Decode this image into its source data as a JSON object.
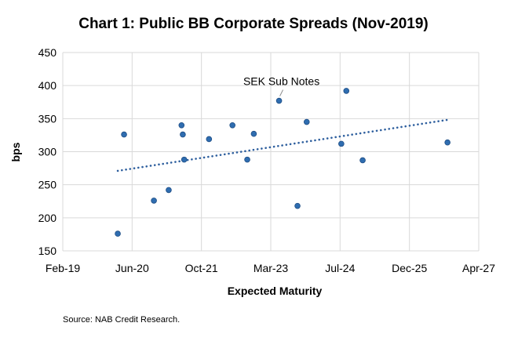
{
  "chart_data": {
    "type": "scatter",
    "title": "Chart 1: Public BB Corporate Spreads (Nov-2019)",
    "xlabel": "Expected Maturity",
    "ylabel": "bps",
    "x_ticks": [
      "Feb-19",
      "Jun-20",
      "Oct-21",
      "Mar-23",
      "Jul-24",
      "Dec-25",
      "Apr-27"
    ],
    "y_ticks": [
      150,
      200,
      250,
      300,
      350,
      400,
      450
    ],
    "ylim": [
      150,
      450
    ],
    "xlim": [
      "2019-02-01",
      "2027-04-01"
    ],
    "grid": true,
    "legend": "none",
    "points": [
      {
        "x": "2020-03-01",
        "y": 176
      },
      {
        "x": "2020-04-15",
        "y": 326
      },
      {
        "x": "2020-11-15",
        "y": 226
      },
      {
        "x": "2021-03-01",
        "y": 242
      },
      {
        "x": "2021-06-01",
        "y": 340
      },
      {
        "x": "2021-06-10",
        "y": 326
      },
      {
        "x": "2021-06-20",
        "y": 288
      },
      {
        "x": "2021-12-15",
        "y": 319
      },
      {
        "x": "2022-06-01",
        "y": 340
      },
      {
        "x": "2022-09-15",
        "y": 288
      },
      {
        "x": "2022-11-01",
        "y": 327
      },
      {
        "x": "2023-05-01",
        "y": 377
      },
      {
        "x": "2023-09-10",
        "y": 218
      },
      {
        "x": "2023-11-15",
        "y": 345
      },
      {
        "x": "2024-07-20",
        "y": 312
      },
      {
        "x": "2024-08-25",
        "y": 392
      },
      {
        "x": "2024-12-20",
        "y": 287
      },
      {
        "x": "2026-08-20",
        "y": 314
      }
    ],
    "trendline": {
      "style": "dotted",
      "from": {
        "x": "2020-03-01",
        "y": 271
      },
      "to": {
        "x": "2026-08-15",
        "y": 348
      }
    },
    "annotations": [
      {
        "text": "SEK Sub Notes",
        "point_index": 11
      }
    ],
    "colors": {
      "marker": "#2f6db0",
      "marker_edge": "#1f4e85",
      "trend": "#2e5f9e",
      "grid": "#d9d9d9"
    }
  },
  "source_note": "Source: NAB Credit Research."
}
